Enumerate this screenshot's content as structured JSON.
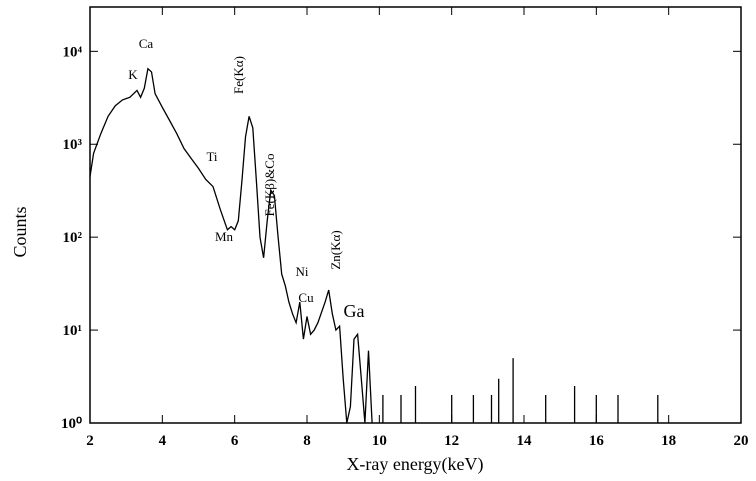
{
  "chart_data": {
    "type": "line",
    "log_y": true,
    "color": "#000000",
    "y_label": "Counts",
    "x_label": "X-ray energy(keV)",
    "xlim": [
      2,
      20
    ],
    "xticks": [
      2,
      4,
      6,
      8,
      10,
      12,
      14,
      16,
      18,
      20
    ],
    "ylim": [
      1,
      30000
    ],
    "yticks": [
      {
        "value": 1,
        "label": "10⁰"
      },
      {
        "value": 10,
        "label": "10¹"
      },
      {
        "value": 100,
        "label": "10²"
      },
      {
        "value": 1000,
        "label": "10³"
      },
      {
        "value": 10000,
        "label": "10⁴"
      }
    ],
    "annotations": [
      "K",
      "Ca",
      "Fe(Kα)",
      "Ti",
      "Fe(Kβ)&Co",
      "Mn",
      "Ni",
      "Cu",
      "Zn(Kα)",
      "Ga"
    ],
    "x": [
      2.0,
      2.1,
      2.3,
      2.5,
      2.7,
      2.9,
      3.1,
      3.3,
      3.4,
      3.5,
      3.6,
      3.7,
      3.8,
      4.0,
      4.2,
      4.4,
      4.6,
      4.8,
      5.0,
      5.2,
      5.4,
      5.6,
      5.8,
      5.9,
      6.0,
      6.1,
      6.2,
      6.3,
      6.4,
      6.5,
      6.6,
      6.7,
      6.8,
      6.9,
      7.0,
      7.1,
      7.2,
      7.3,
      7.4,
      7.5,
      7.6,
      7.7,
      7.8,
      7.9,
      8.0,
      8.1,
      8.2,
      8.3,
      8.5,
      8.6,
      8.7,
      8.8,
      8.9,
      9.0,
      9.1,
      9.2,
      9.3,
      9.4,
      9.5,
      9.6,
      9.7,
      9.8,
      null,
      10.1,
      10.1,
      null,
      10.6,
      10.6,
      null,
      11.0,
      11.0,
      null,
      12.0,
      12.0,
      null,
      12.6,
      12.6,
      null,
      13.1,
      13.1,
      null,
      13.3,
      13.3,
      null,
      13.7,
      13.7,
      null,
      14.6,
      14.6,
      null,
      15.4,
      15.4,
      null,
      16.0,
      16.0,
      null,
      16.6,
      16.6,
      null,
      17.7,
      17.7
    ],
    "values": [
      450,
      800,
      1300,
      2000,
      2600,
      3000,
      3200,
      3800,
      3200,
      4000,
      6500,
      6000,
      3500,
      2500,
      1800,
      1300,
      900,
      700,
      550,
      420,
      350,
      200,
      120,
      130,
      120,
      150,
      400,
      1200,
      2000,
      1500,
      400,
      100,
      60,
      150,
      320,
      280,
      100,
      40,
      30,
      20,
      15,
      12,
      20,
      8,
      14,
      9,
      10,
      12,
      20,
      27,
      15,
      10,
      11,
      3,
      1,
      1.5,
      8,
      9,
      3,
      1,
      6,
      1,
      null,
      1,
      2,
      null,
      1,
      2,
      null,
      1,
      2.5,
      null,
      1,
      2,
      null,
      1,
      2,
      null,
      1,
      2,
      null,
      1,
      3,
      null,
      1,
      5,
      null,
      1,
      2,
      null,
      1,
      2.5,
      null,
      1,
      2,
      null,
      1,
      2,
      null,
      1,
      2
    ]
  }
}
